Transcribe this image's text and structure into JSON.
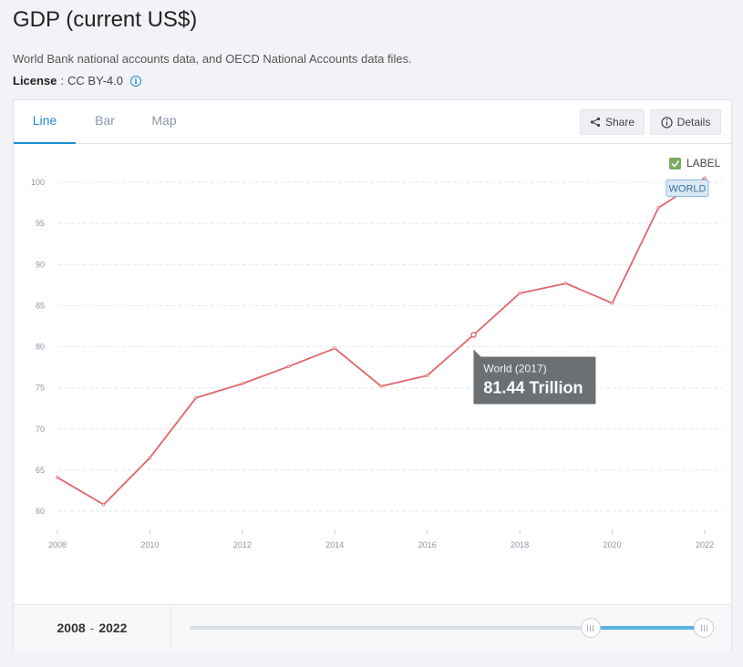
{
  "page": {
    "title": "GDP (current US$)",
    "source": "World Bank national accounts data, and OECD National Accounts data files.",
    "license_label": "License",
    "license_value": "CC BY-4.0"
  },
  "tabs": [
    "Line",
    "Bar",
    "Map"
  ],
  "active_tab": "Line",
  "buttons": {
    "share": "Share",
    "details": "Details"
  },
  "label_toggle": {
    "text": "LABEL",
    "checked": true
  },
  "series_label": "WORLD",
  "tooltip": {
    "title": "World (2017)",
    "value": "81.44 Trillion"
  },
  "range": {
    "start": "2008",
    "sep": "-",
    "end": "2022",
    "selected_fraction": [
      0.78,
      1.0
    ]
  },
  "colors": {
    "line": "#e0646b",
    "accent": "#1e8ecf",
    "tooltip_bg": "#6b7075"
  },
  "chart_data": {
    "type": "line",
    "title": "GDP (current US$)",
    "xlabel": "",
    "ylabel": "",
    "x": [
      2008,
      2009,
      2010,
      2011,
      2012,
      2013,
      2014,
      2015,
      2016,
      2017,
      2018,
      2019,
      2020,
      2021,
      2022
    ],
    "series": [
      {
        "name": "WORLD",
        "values": [
          64.1,
          60.8,
          66.5,
          73.8,
          75.5,
          77.6,
          79.8,
          75.2,
          76.5,
          81.44,
          86.5,
          87.7,
          85.3,
          96.9,
          100.5
        ]
      }
    ],
    "y_ticks": [
      60,
      65,
      70,
      75,
      80,
      85,
      90,
      95,
      100
    ],
    "x_ticks": [
      2008,
      2010,
      2012,
      2014,
      2016,
      2018,
      2020,
      2022
    ],
    "ylim": [
      60,
      100
    ],
    "xlim": [
      2008,
      2022
    ],
    "grid": true,
    "highlight_x": 2017
  }
}
